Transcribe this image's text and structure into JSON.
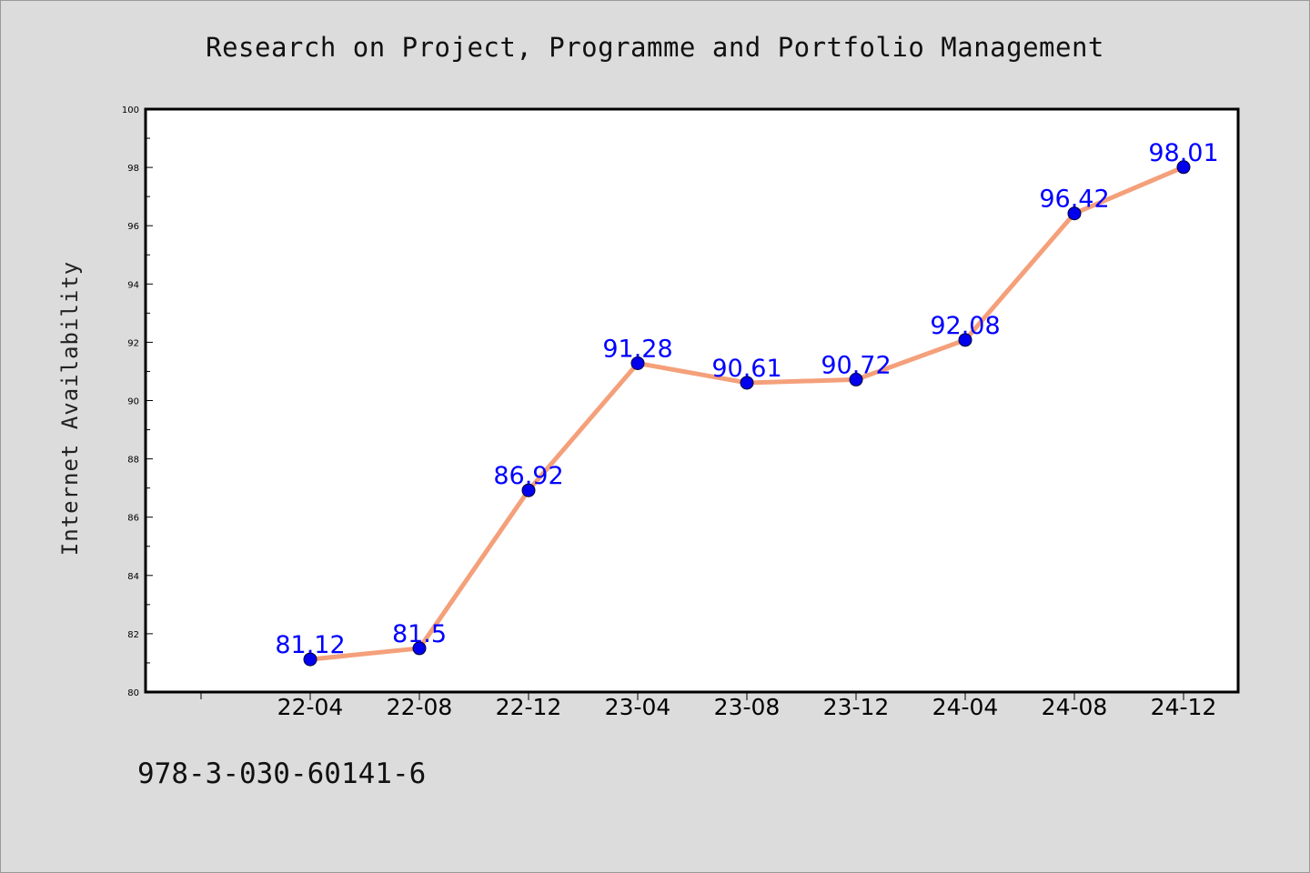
{
  "chart_data": {
    "type": "line",
    "title": "Research on Project, Programme and Portfolio Management",
    "ylabel": "Internet Availability",
    "xlabel": "",
    "categories": [
      "22-04",
      "22-08",
      "22-12",
      "23-04",
      "23-08",
      "23-12",
      "24-04",
      "24-08",
      "24-12"
    ],
    "series": [
      {
        "values": [
          81.12,
          81.5,
          86.92,
          91.28,
          90.61,
          90.72,
          92.08,
          96.42,
          98.01
        ],
        "labels": [
          "81.12",
          "81.5",
          "86.92",
          "91.28",
          "90.61",
          "90.72",
          "92.08",
          "96.42",
          "98.01"
        ],
        "line_color": "#f4a07a",
        "marker_color": "#0000ee"
      }
    ],
    "ylim": [
      80,
      100
    ],
    "yticks": [
      "80",
      "82",
      "84",
      "86",
      "88",
      "90",
      "92",
      "94",
      "96",
      "98",
      "100"
    ],
    "grid": false,
    "legend": "none"
  },
  "footer": {
    "isbn": "978-3-030-60141-6"
  },
  "colors": {
    "background": "#dcdcdc",
    "plot_background": "#ffffff",
    "label_color": "#0000ff"
  }
}
